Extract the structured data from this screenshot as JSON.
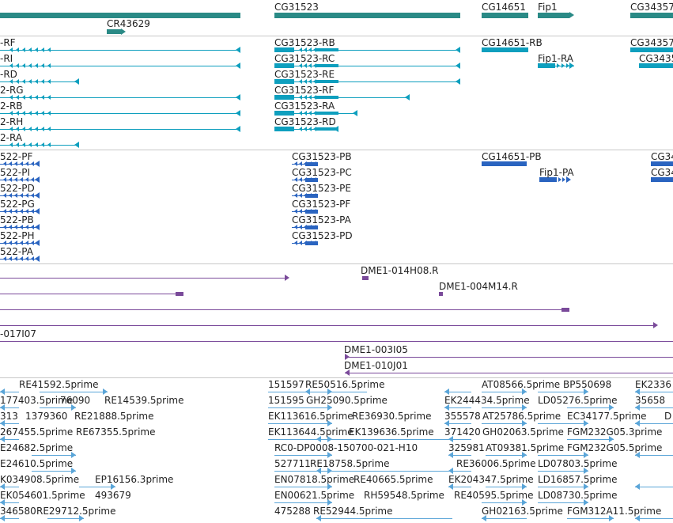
{
  "colors": {
    "gene": "#2a8a86",
    "transcript": "#0e9fbe",
    "cds": "#2a64c0",
    "clone": "#7a4a9a",
    "est": "#5aa5d8",
    "separator": "#c8c8c8"
  },
  "tracks": {
    "genes": {
      "labels": [
        "CG31523",
        "CG14651",
        "Fip1",
        "CG34357",
        "CR43629"
      ]
    },
    "transcripts": {
      "labels": [
        "-RF",
        "-RI",
        "-RD",
        "2-RG",
        "2-RB",
        "2-RH",
        "2-RA",
        "CG31523-RB",
        "CG31523-RC",
        "CG31523-RE",
        "CG31523-RF",
        "CG31523-RA",
        "CG31523-RD",
        "CG14651-RB",
        "Fip1-RA",
        "CG34357",
        "CG3435"
      ]
    },
    "polypeptides": {
      "labels": [
        "522-PF",
        "522-PI",
        "522-PD",
        "522-PG",
        "522-PB",
        "522-PH",
        "522-PA",
        "CG31523-PB",
        "CG31523-PC",
        "CG31523-PE",
        "CG31523-PF",
        "CG31523-PA",
        "CG31523-PD",
        "CG14651-PB",
        "Fip1-PA",
        "CG34",
        "CG34"
      ]
    },
    "clones": {
      "labels": [
        "DME1-014H08.R",
        "DME1-004M14.R",
        "-017I07",
        "DME1-003I05",
        "DME1-010J01"
      ]
    },
    "ests": {
      "labels": [
        "RE41592.5prime",
        "177403.5prime",
        "76090",
        "RE14539.5prime",
        "313",
        "1379360",
        "RE21888.5prime",
        "267455.5prime",
        "RE67355.5prime",
        "E24682.5prime",
        "E24610.5prime",
        "K034908.5prime",
        "EP16156.3prime",
        "EK054601.5prime",
        "493679",
        "346580",
        "RE29712.5prime",
        "151597",
        "RE50516.5prime",
        "151595",
        "GH25090.5prime",
        "EK113616.5prime",
        "RE36930.5prime",
        "EK113644.5prime",
        "EK139636.5prime",
        "RC0-DP0008-150700-021-H10",
        "527711",
        "RE18758.5prime",
        "EN07818.5prime",
        "RE40665.5prime",
        "EN00621.5prime",
        "RH59548.5prime",
        "475288",
        "RE52944.5prime",
        "EK244434.5prime",
        "355578",
        "AT25786.5prime",
        "371420",
        "GH02063.5prime",
        "325981",
        "AT09381.5prime",
        "RE36006.5prime",
        "EK204347.5prime",
        "RE40595.5prime",
        "GH02163.5prime",
        "AT08566.5prime",
        "BP550698",
        "LD05276.5prime",
        "EC34177.5prime",
        "FGM232G05.3prime",
        "FGM232G05.5prime",
        "LD07803.5prime",
        "LD16857.5prime",
        "LD08730.5prime",
        "FGM312A11.5prime",
        "EK2336",
        "35658",
        "D"
      ]
    }
  }
}
